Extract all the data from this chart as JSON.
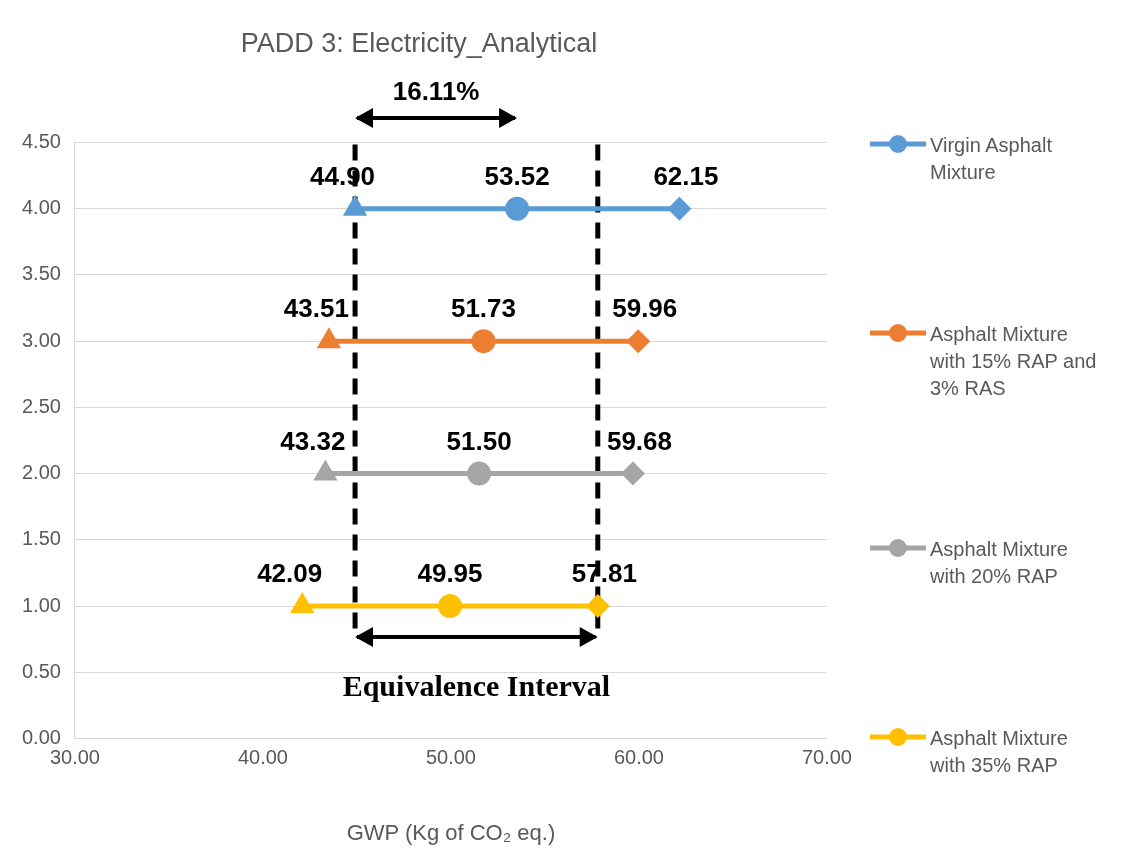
{
  "chart_data": {
    "type": "scatter",
    "title": "PADD 3: Electricity_Analytical",
    "xlabel": "GWP (Kg of CO₂ eq.)",
    "xlim": [
      30,
      70
    ],
    "xticks": [
      {
        "value": 30,
        "label": "30.00"
      },
      {
        "value": 40,
        "label": "40.00"
      },
      {
        "value": 50,
        "label": "50.00"
      },
      {
        "value": 60,
        "label": "60.00"
      },
      {
        "value": 70,
        "label": "70.00"
      }
    ],
    "ylim": [
      0,
      4.5
    ],
    "yticks": [
      {
        "value": 0,
        "label": "0.00"
      },
      {
        "value": 0.5,
        "label": "0.50"
      },
      {
        "value": 1,
        "label": "1.00"
      },
      {
        "value": 1.5,
        "label": "1.50"
      },
      {
        "value": 2,
        "label": "2.00"
      },
      {
        "value": 2.5,
        "label": "2.50"
      },
      {
        "value": 3,
        "label": "3.00"
      },
      {
        "value": 3.5,
        "label": "3.50"
      },
      {
        "value": 4,
        "label": "4.00"
      },
      {
        "value": 4.5,
        "label": "4.50"
      }
    ],
    "grid": "y",
    "legend": "right",
    "series": [
      {
        "type": "line",
        "name": "Virgin Asphalt Mixture",
        "color": "#5b9bd5",
        "x": [
          44.9,
          53.52,
          62.15
        ],
        "values": [
          4,
          4,
          4
        ],
        "marker": "none"
      },
      {
        "type": "line",
        "name": "Asphalt Mixture with 15% RAP and 3% RAS",
        "color": "#ed7d31",
        "x": [
          43.51,
          51.73,
          59.96
        ],
        "values": [
          3,
          3,
          3
        ],
        "marker": "none"
      },
      {
        "type": "line",
        "name": "Asphalt Mixture with 20% RAP",
        "color": "#a5a5a5",
        "x": [
          43.32,
          51.5,
          59.68
        ],
        "values": [
          2,
          2,
          2
        ],
        "marker": "none"
      },
      {
        "type": "line",
        "name": "Asphalt Mixture with 35% RAP",
        "color": "#ffc000",
        "x": [
          42.09,
          49.95,
          57.81
        ],
        "values": [
          1,
          1,
          1
        ],
        "marker": "none"
      },
      {
        "type": "scatter",
        "marker": "triangle",
        "x": [
          44.9,
          43.51,
          43.32,
          42.09
        ],
        "values": [
          4,
          3,
          2,
          1
        ],
        "colors": [
          "#5b9bd5",
          "#ed7d31",
          "#a5a5a5",
          "#ffc000"
        ]
      },
      {
        "type": "scatter",
        "marker": "circle",
        "x": [
          53.52,
          51.73,
          51.5,
          49.95
        ],
        "values": [
          4,
          3,
          2,
          1
        ],
        "colors": [
          "#5b9bd5",
          "#ed7d31",
          "#a5a5a5",
          "#ffc000"
        ]
      },
      {
        "type": "scatter",
        "marker": "diamond",
        "x": [
          62.15,
          59.96,
          59.68,
          57.81
        ],
        "values": [
          4,
          3,
          2,
          1
        ],
        "colors": [
          "#5b9bd5",
          "#ed7d31",
          "#a5a5a5",
          "#ffc000"
        ]
      }
    ],
    "ref_lines": [
      {
        "axis": "x",
        "value": 44.9,
        "color": "#000000",
        "line_style": "dashed"
      },
      {
        "axis": "x",
        "value": 57.81,
        "color": "#000000",
        "line_style": "dashed"
      }
    ],
    "annotations": [
      "16.11%",
      "Equivalence Interval",
      {
        "text": "44.90",
        "x": 44.9,
        "y": 4
      },
      {
        "text": "53.52",
        "x": 53.52,
        "y": 4
      },
      {
        "text": "62.15",
        "x": 62.15,
        "y": 4
      },
      {
        "text": "43.51",
        "x": 43.51,
        "y": 3
      },
      {
        "text": "51.73",
        "x": 51.73,
        "y": 3
      },
      {
        "text": "59.96",
        "x": 59.96,
        "y": 3
      },
      {
        "text": "43.32",
        "x": 43.32,
        "y": 2
      },
      {
        "text": "51.50",
        "x": 51.5,
        "y": 2
      },
      {
        "text": "59.68",
        "x": 59.68,
        "y": 2
      },
      {
        "text": "42.09",
        "x": 42.09,
        "y": 1
      },
      {
        "text": "49.95",
        "x": 49.95,
        "y": 1
      },
      {
        "text": "57.81",
        "x": 57.81,
        "y": 1
      }
    ]
  }
}
